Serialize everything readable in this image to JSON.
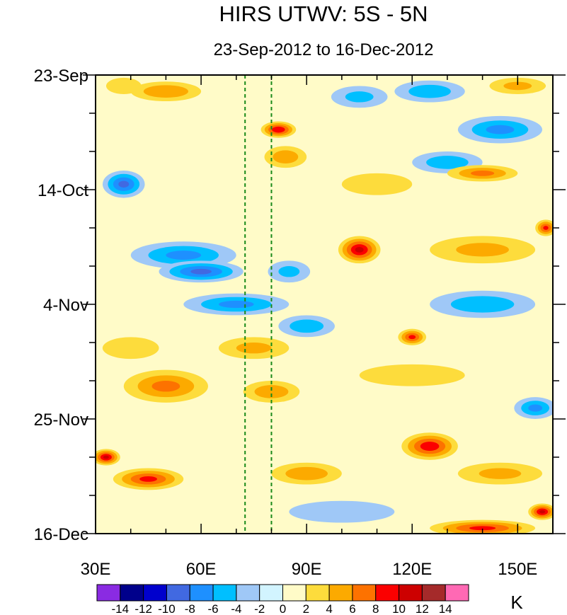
{
  "chart_data": {
    "type": "heatmap",
    "title": "HIRS UTWV: 5S - 5N",
    "subtitle": "23-Sep-2012 to 16-Dec-2012",
    "x_axis": {
      "range": [
        30,
        160
      ],
      "ticks": [
        {
          "value": 30,
          "label": "30E"
        },
        {
          "value": 60,
          "label": "60E"
        },
        {
          "value": 90,
          "label": "90E"
        },
        {
          "value": 120,
          "label": "120E"
        },
        {
          "value": 150,
          "label": "150E"
        }
      ],
      "minor_step": 10
    },
    "y_axis": {
      "range_days": [
        0,
        84
      ],
      "ticks": [
        {
          "value": 0,
          "label": "23-Sep"
        },
        {
          "value": 21,
          "label": "14-Oct"
        },
        {
          "value": 42,
          "label": "4-Nov"
        },
        {
          "value": 63,
          "label": "25-Nov"
        },
        {
          "value": 84,
          "label": "16-Dec"
        }
      ],
      "minor_step": 7
    },
    "reference_lines_lon": [
      72.5,
      80
    ],
    "colorbar": {
      "unit": "K",
      "levels": [
        -14,
        -12,
        -10,
        -8,
        -6,
        -4,
        -2,
        0,
        2,
        4,
        6,
        8,
        10,
        12,
        14
      ],
      "labels": [
        "-14",
        "-12",
        "-10",
        "-8",
        "-6",
        "-4",
        "-2",
        "0",
        "2",
        "4",
        "6",
        "8",
        "10",
        "12",
        "14"
      ],
      "colors": [
        "#8a2be2",
        "#00008b",
        "#0000cd",
        "#4169e1",
        "#1e90ff",
        "#00bfff",
        "#9fc8f7",
        "#d2f4ff",
        "#fffbc8",
        "#fddc3c",
        "#fcaa00",
        "#fd7200",
        "#fb0000",
        "#cd0000",
        "#a52a2a",
        "#ff69b4"
      ]
    },
    "anomaly_features": [
      {
        "lon": 50,
        "day": 3,
        "value": 5.5,
        "rx": 10,
        "ry": 1.8
      },
      {
        "lon": 38,
        "day": 2,
        "value": 3,
        "rx": 5,
        "ry": 1.5
      },
      {
        "lon": 82,
        "day": 10,
        "value": 9.5,
        "rx": 5,
        "ry": 1.5
      },
      {
        "lon": 84,
        "day": 15,
        "value": 5,
        "rx": 6,
        "ry": 2
      },
      {
        "lon": 125,
        "day": 3,
        "value": -5,
        "rx": 10,
        "ry": 2
      },
      {
        "lon": 105,
        "day": 4,
        "value": -4,
        "rx": 8,
        "ry": 2
      },
      {
        "lon": 150,
        "day": 2,
        "value": 4,
        "rx": 8,
        "ry": 1.5
      },
      {
        "lon": 145,
        "day": 10,
        "value": -6,
        "rx": 12,
        "ry": 2.5
      },
      {
        "lon": 130,
        "day": 16,
        "value": -5,
        "rx": 10,
        "ry": 2
      },
      {
        "lon": 38,
        "day": 20,
        "value": -8,
        "rx": 6,
        "ry": 2.5
      },
      {
        "lon": 140,
        "day": 18,
        "value": 6,
        "rx": 10,
        "ry": 1.5
      },
      {
        "lon": 110,
        "day": 20,
        "value": 3,
        "rx": 10,
        "ry": 2
      },
      {
        "lon": 105,
        "day": 32,
        "value": 10,
        "rx": 6,
        "ry": 2.5
      },
      {
        "lon": 140,
        "day": 32,
        "value": 4,
        "rx": 15,
        "ry": 2.5
      },
      {
        "lon": 158,
        "day": 28,
        "value": 8,
        "rx": 3,
        "ry": 1.5
      },
      {
        "lon": 55,
        "day": 33,
        "value": -6,
        "rx": 15,
        "ry": 2.5
      },
      {
        "lon": 60,
        "day": 36,
        "value": -8,
        "rx": 12,
        "ry": 2
      },
      {
        "lon": 85,
        "day": 36,
        "value": -4,
        "rx": 6,
        "ry": 2
      },
      {
        "lon": 70,
        "day": 42,
        "value": -6,
        "rx": 15,
        "ry": 2
      },
      {
        "lon": 90,
        "day": 46,
        "value": -5,
        "rx": 8,
        "ry": 2
      },
      {
        "lon": 140,
        "day": 42,
        "value": -5,
        "rx": 15,
        "ry": 2.5
      },
      {
        "lon": 120,
        "day": 48,
        "value": 8,
        "rx": 4,
        "ry": 1.5
      },
      {
        "lon": 40,
        "day": 50,
        "value": 3,
        "rx": 8,
        "ry": 2
      },
      {
        "lon": 75,
        "day": 50,
        "value": 4,
        "rx": 10,
        "ry": 2
      },
      {
        "lon": 50,
        "day": 57,
        "value": 6,
        "rx": 12,
        "ry": 3
      },
      {
        "lon": 80,
        "day": 58,
        "value": 5,
        "rx": 8,
        "ry": 2
      },
      {
        "lon": 120,
        "day": 55,
        "value": 3,
        "rx": 15,
        "ry": 2
      },
      {
        "lon": 155,
        "day": 61,
        "value": -6,
        "rx": 6,
        "ry": 2
      },
      {
        "lon": 125,
        "day": 68,
        "value": 9,
        "rx": 8,
        "ry": 2.5
      },
      {
        "lon": 33,
        "day": 70,
        "value": 10,
        "rx": 4,
        "ry": 1.5
      },
      {
        "lon": 45,
        "day": 74,
        "value": 8,
        "rx": 10,
        "ry": 2
      },
      {
        "lon": 90,
        "day": 73,
        "value": 5,
        "rx": 10,
        "ry": 2
      },
      {
        "lon": 145,
        "day": 73,
        "value": 4,
        "rx": 12,
        "ry": 2
      },
      {
        "lon": 140,
        "day": 83,
        "value": 8,
        "rx": 15,
        "ry": 1.5
      },
      {
        "lon": 157,
        "day": 80,
        "value": 10,
        "rx": 4,
        "ry": 1.5
      },
      {
        "lon": 100,
        "day": 80,
        "value": -3,
        "rx": 15,
        "ry": 2
      }
    ]
  }
}
